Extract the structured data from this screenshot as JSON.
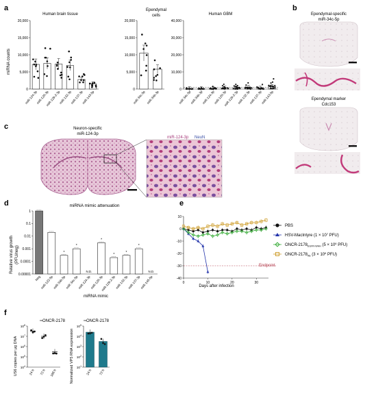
{
  "panels": {
    "a": {
      "letter": "a",
      "ylabel": "miRNA counts",
      "brain": {
        "title": "Human brain tissue",
        "yticks": [
          "0",
          "5,000",
          "10,000",
          "15,000",
          "20,000"
        ],
        "categories": [
          "miR-124-3p",
          "miR-128-3p",
          "miR-129-2-3p",
          "miR-132-3p",
          "miR-137-3p",
          "miR-143-5p"
        ]
      },
      "ependymal": {
        "title": "Ependymal",
        "title2": "cells",
        "yticks": [
          "0",
          "5,000",
          "10,000",
          "15,000",
          "20,000"
        ],
        "categories": [
          "miR-34c-5p",
          "miR-34b-3p"
        ]
      },
      "gbm": {
        "title": "Human GBM",
        "yticks": [
          "0",
          "10,000",
          "20,000",
          "30,000",
          "40,000"
        ],
        "categories": [
          "miR-34c-5p",
          "miR-34b-3p",
          "miR-124-3p",
          "miR-128-3p",
          "miR-129-2-3p",
          "miR-132-3p",
          "miR-137-3p",
          "miR-143-5p"
        ]
      }
    },
    "b": {
      "letter": "b",
      "title1": "Ependymal-specific",
      "title2": "miR-34c-5p",
      "title3": "Ependymal marker",
      "title4": "Cdc153"
    },
    "c": {
      "letter": "c",
      "title1": "Neuron-specific",
      "title2": "miR-124-3p",
      "legend_mir": "miR-124-3p",
      "legend_neun": "NeuN"
    },
    "d": {
      "letter": "d",
      "title": "miRNA mimic attenuation",
      "ylabel1": "Relative virus growth",
      "ylabel2": "(PFU/neg)",
      "xlabel": "miRNA mimic",
      "yticks": [
        "1",
        "0.1",
        "0.01",
        "0.001",
        "0.0001",
        "0.00001"
      ],
      "categories": [
        "Neg",
        "miR-122-5p",
        "miR-34b-5p",
        "miR-34c-5p",
        "miR-124-3p",
        "miR-128-3p",
        "miR-129-2-3p",
        "miR-132-3p",
        "miR-137-3p",
        "miR-145-5p"
      ],
      "nd_label": "N.D."
    },
    "e": {
      "letter": "e",
      "xlabel": "Days after infection",
      "yticks": [
        "10",
        "0",
        "-10",
        "-20",
        "-30",
        "-40"
      ],
      "xticks": [
        "0",
        "10",
        "20",
        "30"
      ],
      "endpoint": "Endpoint",
      "legend": {
        "pbs": "PBS",
        "hsv": "HSV-MacIntyre (1 × 10",
        "hsv_exp": "7",
        "hsv_end": " PFU)",
        "oncr1": "ONCR-2178",
        "oncr1_sub": "EGFR-WHH",
        "oncr1_end": " (5 × 10",
        "oncr1_exp": "6",
        "oncr1_end2": " PFU)",
        "oncr2": "ONCR-2178",
        "oncr2_sub": "lite",
        "oncr2_end": " (3 × 10",
        "oncr2_exp": "6",
        "oncr2_end2": " PFU)"
      }
    },
    "f": {
      "letter": "f",
      "left_title_prefix": "vs",
      "left_title": "ONCR-2178",
      "left_ylabel": "US6 copies per μg DNA",
      "left_xticks": [
        "24 h",
        "72 h",
        "168 h"
      ],
      "left_yticks": [
        "10",
        "10",
        "10",
        "10",
        "10"
      ],
      "left_yexp": [
        "4",
        "5",
        "6",
        "7",
        "8"
      ],
      "right_title_prefix": "vs",
      "right_title": "ONCR-2178",
      "right_ylabel": "Normalized VP5 RNA expression",
      "right_xticks": [
        "24 h",
        "72 h"
      ],
      "right_yticks": [
        "10",
        "10",
        "10",
        "10",
        "10"
      ],
      "right_yexp": [
        "1",
        "2",
        "3",
        "4",
        "5"
      ]
    }
  },
  "chart_data": [
    {
      "type": "bar",
      "panel": "a-brain",
      "categories": [
        "miR-124-3p",
        "miR-128-3p",
        "miR-129-2-3p",
        "miR-132-3p",
        "miR-137-3p",
        "miR-143-5p"
      ],
      "values": [
        7200,
        7500,
        7300,
        6900,
        2800,
        1500
      ],
      "ylim": [
        0,
        20000
      ]
    },
    {
      "type": "bar",
      "panel": "a-ependymal",
      "categories": [
        "miR-34c-5p",
        "miR-34b-3p"
      ],
      "values": [
        10500,
        5800
      ],
      "ylim": [
        0,
        20000
      ]
    },
    {
      "type": "bar",
      "panel": "a-gbm",
      "categories": [
        "miR-34c-5p",
        "miR-34b-3p",
        "miR-124-3p",
        "miR-128-3p",
        "miR-129-2-3p",
        "miR-132-3p",
        "miR-137-3p",
        "miR-143-5p"
      ],
      "values": [
        150,
        120,
        300,
        500,
        600,
        900,
        450,
        1400
      ],
      "ylim": [
        0,
        40000
      ]
    },
    {
      "type": "bar",
      "panel": "d",
      "categories": [
        "Neg",
        "miR-122-5p",
        "miR-34b-5p",
        "miR-34c-5p",
        "miR-124-3p",
        "miR-128-3p",
        "miR-129-2-3p",
        "miR-132-3p",
        "miR-137-3p",
        "miR-145-5p"
      ],
      "values": [
        1,
        0.02,
        0.0003,
        0.001,
        null,
        0.003,
        0.0002,
        0.0003,
        0.001,
        null
      ],
      "ylim": [
        1e-05,
        1
      ],
      "log": true
    },
    {
      "type": "line",
      "panel": "e",
      "xlabel": "Days after infection",
      "ylim": [
        -40,
        10
      ],
      "xlim": [
        0,
        35
      ],
      "series": [
        {
          "name": "PBS",
          "color": "#111111",
          "x": [
            0,
            2,
            4,
            6,
            8,
            10,
            12,
            14,
            16,
            18,
            20,
            22,
            24,
            26,
            28,
            30,
            32,
            34
          ],
          "y": [
            0,
            -1,
            -2,
            -1,
            -3,
            -2,
            -1,
            -2,
            -1,
            -1,
            -2,
            0,
            -1,
            0,
            -1,
            1,
            0,
            1
          ]
        },
        {
          "name": "HSV-MacIntyre",
          "color": "#2233aa",
          "x": [
            0,
            2,
            4,
            6,
            8,
            10
          ],
          "y": [
            0,
            -4,
            -8,
            -10,
            -14,
            -35
          ]
        },
        {
          "name": "ONCR-2178EGFR-WHH",
          "color": "#33aa33",
          "x": [
            0,
            2,
            4,
            6,
            8,
            10,
            12,
            14,
            16,
            18,
            20,
            22,
            24,
            26,
            28,
            30,
            32,
            34
          ],
          "y": [
            0,
            -3,
            -5,
            -6,
            -5,
            -4,
            -6,
            -5,
            -3,
            -4,
            -3,
            -2,
            -2,
            -3,
            -2,
            -1,
            -1,
            0
          ]
        },
        {
          "name": "ONCR-2178lite",
          "color": "#cc9922",
          "x": [
            0,
            2,
            4,
            6,
            8,
            10,
            12,
            14,
            16,
            18,
            20,
            22,
            24,
            26,
            28,
            30,
            32,
            34
          ],
          "y": [
            2,
            1,
            0,
            1,
            0,
            2,
            3,
            2,
            4,
            3,
            4,
            5,
            3,
            4,
            5,
            5,
            6,
            7
          ]
        }
      ],
      "endpoint": -30
    },
    {
      "type": "scatter",
      "panel": "f-left",
      "categories": [
        "24 h",
        "72 h",
        "168 h"
      ],
      "values": [
        7.5,
        7.0,
        5.5
      ],
      "log": true
    },
    {
      "type": "bar",
      "panel": "f-right",
      "categories": [
        "24 h",
        "72 h"
      ],
      "values": [
        4.4,
        3.5
      ],
      "log": true
    }
  ],
  "colors": {
    "bar_edge": "#222222",
    "tissue": "#d9a7c4",
    "tissue_dark": "#b4629a",
    "stain": "#c23a7a",
    "teal": "#1f7a8c",
    "gray_bar": "#777777"
  }
}
